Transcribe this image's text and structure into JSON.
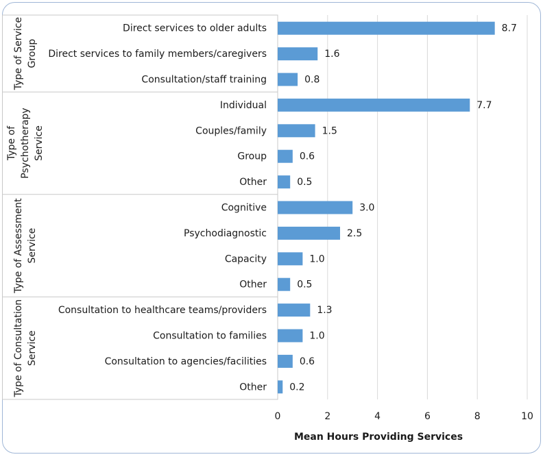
{
  "chart_data": {
    "type": "bar",
    "orientation": "horizontal",
    "xlabel": "Mean Hours Providing Services",
    "xlim": [
      0,
      10
    ],
    "xticks": [
      "0",
      "2",
      "4",
      "6",
      "8",
      "10"
    ],
    "grid": "vertical",
    "bar_color": "#5b9bd5",
    "groups": [
      {
        "label": [
          "Type of Service",
          "Group"
        ],
        "categories": [
          "Direct services to older adults",
          "Direct services to family members/caregivers",
          "Consultation/staff training"
        ],
        "values": [
          8.7,
          1.6,
          0.8
        ],
        "labels": [
          "8.7",
          "1.6",
          "0.8"
        ]
      },
      {
        "label": [
          "Type of",
          "Psychotherapy",
          "Service"
        ],
        "categories": [
          "Individual",
          "Couples/family",
          "Group",
          "Other"
        ],
        "values": [
          7.7,
          1.5,
          0.6,
          0.5
        ],
        "labels": [
          "7.7",
          "1.5",
          "0.6",
          "0.5"
        ]
      },
      {
        "label": [
          "Type of Assessment",
          "Service"
        ],
        "categories": [
          "Cognitive",
          "Psychodiagnostic",
          "Capacity",
          "Other"
        ],
        "values": [
          3.0,
          2.5,
          1.0,
          0.5
        ],
        "labels": [
          "3.0",
          "2.5",
          "1.0",
          "0.5"
        ]
      },
      {
        "label": [
          "Type of Consultation",
          "Service"
        ],
        "categories": [
          "Consultation to healthcare  teams/providers",
          "Consultation to families",
          "Consultation to agencies/facilities",
          "Other"
        ],
        "values": [
          1.3,
          1.0,
          0.6,
          0.2
        ],
        "labels": [
          "1.3",
          "1.0",
          "0.6",
          "0.2"
        ]
      }
    ]
  }
}
